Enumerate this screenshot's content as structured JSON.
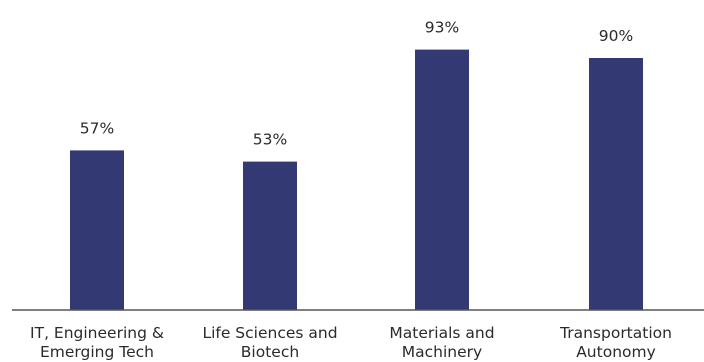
{
  "chart_data": {
    "type": "bar",
    "categories": [
      [
        "IT, Engineering &",
        "Emerging Tech"
      ],
      [
        "Life Sciences and",
        "Biotech"
      ],
      [
        "Materials and",
        "Machinery"
      ],
      [
        "Transportation",
        "Autonomy"
      ]
    ],
    "values": [
      57,
      53,
      93,
      90
    ],
    "data_labels": [
      "57%",
      "53%",
      "93%",
      "90%"
    ],
    "ylim": [
      0,
      100
    ],
    "grid": false,
    "bar_color": "#333a73",
    "axis_color": "#555555",
    "title": "",
    "xlabel": "",
    "ylabel": ""
  }
}
